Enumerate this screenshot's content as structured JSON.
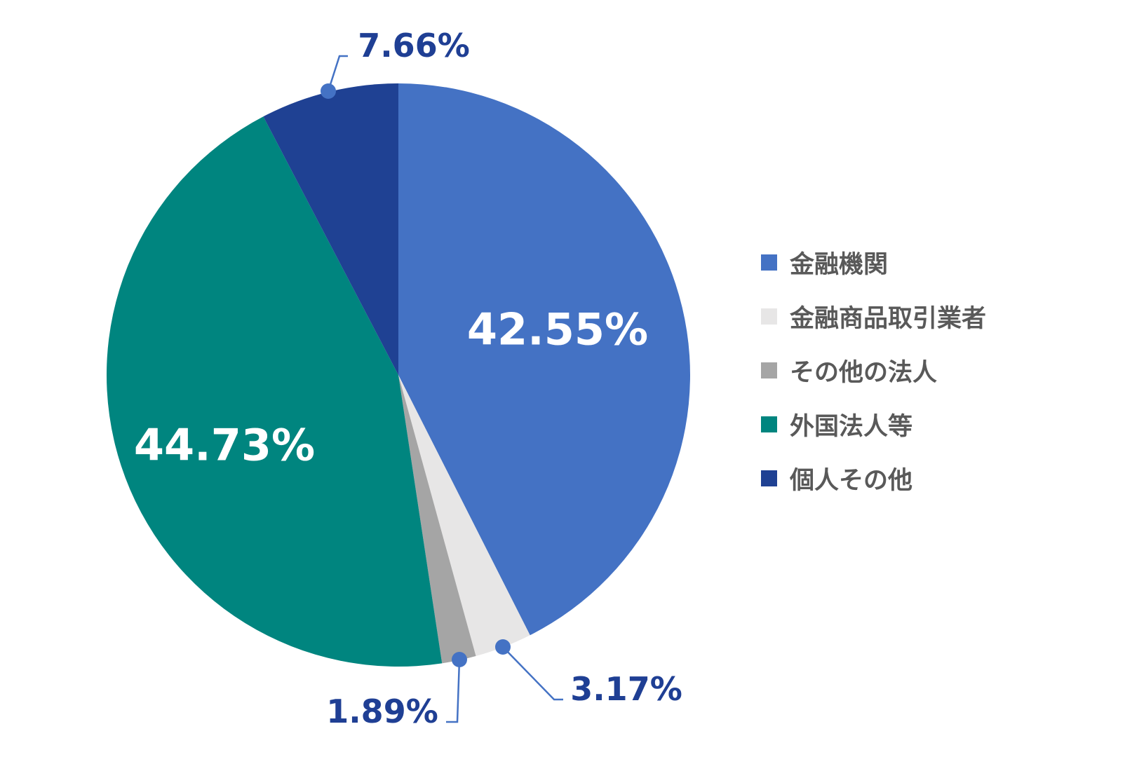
{
  "chart_data": {
    "type": "pie",
    "title": "",
    "start_angle_deg": 0,
    "direction": "clockwise",
    "slices": [
      {
        "name": "金融機関",
        "value": 42.55,
        "label": "42.55%",
        "color": "#4472c4",
        "label_position": "inside"
      },
      {
        "name": "金融商品取引業者",
        "value": 3.17,
        "label": "3.17%",
        "color": "#e7e6e6",
        "label_position": "outside"
      },
      {
        "name": "その他の法人",
        "value": 1.89,
        "label": "1.89%",
        "color": "#a5a5a5",
        "label_position": "outside"
      },
      {
        "name": "外国法人等",
        "value": 44.73,
        "label": "44.73%",
        "color": "#00857f",
        "label_position": "inside"
      },
      {
        "name": "個人その他",
        "value": 7.66,
        "label": "7.66%",
        "color": "#1f4193",
        "label_position": "outside"
      }
    ],
    "legend_placement": "right",
    "label_colors": {
      "inside": "#ffffff",
      "outside": "#1f3f94",
      "leader_line": "#4472c4"
    }
  }
}
